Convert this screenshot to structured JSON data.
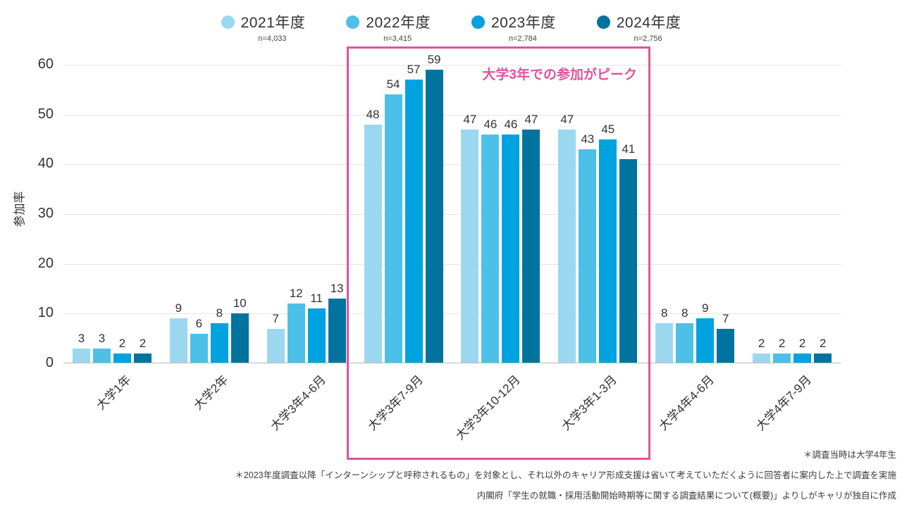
{
  "legend": {
    "items": [
      {
        "label": "2021年度",
        "n": "n=4,033",
        "color": "#9bd8f0"
      },
      {
        "label": "2022年度",
        "n": "n=3,415",
        "color": "#4dc0e8"
      },
      {
        "label": "2023年度",
        "n": "n=2,784",
        "color": "#00a2e0"
      },
      {
        "label": "2024年度",
        "n": "n=2,756",
        "color": "#00739e"
      }
    ]
  },
  "chart_data": {
    "type": "bar",
    "title": "",
    "ylabel": "参加率",
    "xlabel": "",
    "ylim": [
      0,
      60
    ],
    "yticks": [
      0,
      10,
      20,
      30,
      40,
      50,
      60
    ],
    "grid": true,
    "legend_position": "top",
    "categories": [
      "大学1年",
      "大学2年",
      "大学3年4-6月",
      "大学3年7-9月",
      "大学3年10-12月",
      "大学3年1-3月",
      "大学4年4-6月",
      "大学4年7-9月"
    ],
    "series": [
      {
        "name": "2021年度",
        "n": "n=4,033",
        "color": "#9bd8f0",
        "values": [
          3,
          9,
          7,
          48,
          47,
          47,
          8,
          2
        ]
      },
      {
        "name": "2022年度",
        "n": "n=3,415",
        "color": "#4dc0e8",
        "values": [
          3,
          6,
          12,
          54,
          46,
          43,
          8,
          2
        ]
      },
      {
        "name": "2023年度",
        "n": "n=2,784",
        "color": "#00a2e0",
        "values": [
          2,
          8,
          11,
          57,
          46,
          45,
          9,
          2
        ]
      },
      {
        "name": "2024年度",
        "n": "n=2,756",
        "color": "#00739e",
        "values": [
          2,
          10,
          13,
          59,
          47,
          41,
          7,
          2
        ]
      }
    ],
    "annotation": {
      "text": "大学3年での参加がピーク",
      "highlight_categories": [
        "大学3年7-9月",
        "大学3年10-12月",
        "大学3年1-3月"
      ],
      "color": "#dd559d"
    }
  },
  "footnotes": [
    "＊調査当時は大学4年生",
    "＊2023年度調査以降「インターンシップと呼称されるもの」を対象とし、それ以外のキャリア形成支援は省いて考えていただくように回答者に案内した上で調査を実施",
    "内閣府「学生の就職・採用活動開始時期等に関する調査結果について(概要)」よりしがキャリが独自に作成"
  ]
}
